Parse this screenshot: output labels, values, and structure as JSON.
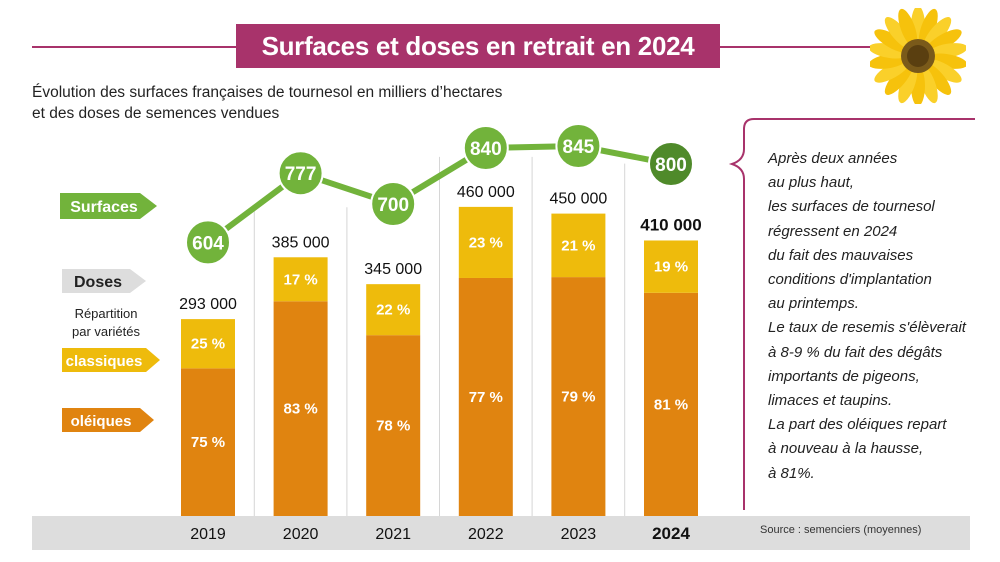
{
  "title": "Surfaces et doses en retrait en 2024",
  "subtitle_lines": [
    "Évolution des surfaces françaises de tournesol en milliers d’hectares",
    "et des doses de semences vendues"
  ],
  "legend": {
    "surfaces": "Surfaces",
    "doses": "Doses",
    "repartition_line1": "Répartition",
    "repartition_line2": "par variétés",
    "classiques": "classiques",
    "oleiques": "oléiques"
  },
  "note_lines": [
    "Après deux années",
    "au plus haut,",
    "les surfaces de tournesol",
    "régressent en 2024",
    "du fait des mauvaises",
    "conditions d'implantation",
    "au printemps.",
    "Le taux de resemis s'élèverait",
    "à 8-9 % du fait des dégâts",
    "importants de pigeons,",
    "limaces et taupins.",
    "La part des oléiques repart",
    "à nouveau à la hausse,",
    "à 81%."
  ],
  "source": "Source : semenciers (moyennes)",
  "colors": {
    "title_bg": "#a8336b",
    "green": "#72b33b",
    "green_dark": "#4f8a2a",
    "orange": "#e08410",
    "yellow": "#eebb0c",
    "grey": "#dddddd"
  },
  "icons": {
    "sunflower": "sunflower-icon"
  },
  "chart_data": {
    "type": "bar",
    "categories": [
      "2019",
      "2020",
      "2021",
      "2022",
      "2023",
      "2024"
    ],
    "highlight_category": "2024",
    "doses_labels": [
      "293 000",
      "385 000",
      "345 000",
      "460 000",
      "450 000",
      "410 000"
    ],
    "doses_values": [
      293000,
      385000,
      345000,
      460000,
      450000,
      410000
    ],
    "series": [
      {
        "name": "oléiques",
        "values": [
          75,
          83,
          78,
          77,
          79,
          81
        ],
        "labels": [
          "75 %",
          "83 %",
          "78 %",
          "77 %",
          "79 %",
          "81 %"
        ]
      },
      {
        "name": "classiques",
        "values": [
          25,
          17,
          22,
          23,
          21,
          19
        ],
        "labels": [
          "25 %",
          "17 %",
          "22 %",
          "23 %",
          "21 %",
          "19 %"
        ]
      }
    ],
    "line": {
      "name": "Surfaces",
      "values": [
        604,
        777,
        700,
        840,
        845,
        800
      ],
      "labels": [
        "604",
        "777",
        "700",
        "840",
        "845",
        "800"
      ]
    }
  }
}
